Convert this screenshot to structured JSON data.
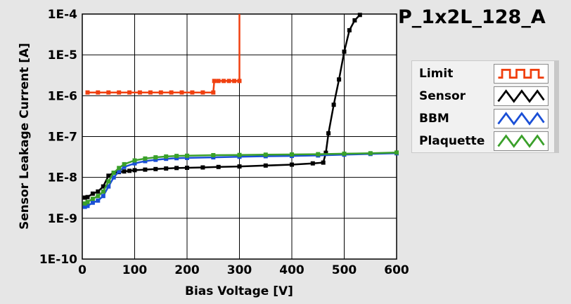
{
  "chart_data": {
    "type": "line",
    "title": "P_1x2L_128_A",
    "xlabel": "Bias Voltage [V]",
    "ylabel": "Sensor Leakage Current [A]",
    "xlim": [
      0,
      600
    ],
    "ylim": [
      1e-10,
      0.0001
    ],
    "y_scale": "log",
    "grid": true,
    "legend_position": "right",
    "x_ticks": [
      "0",
      "100",
      "200",
      "300",
      "400",
      "500",
      "600"
    ],
    "y_ticks": [
      "1E-10",
      "1E-9",
      "1E-8",
      "1E-7",
      "1E-6",
      "1E-5",
      "1E-4"
    ],
    "series": [
      {
        "name": "Limit",
        "color": "#f04010",
        "x": [
          10,
          30,
          50,
          70,
          90,
          110,
          130,
          150,
          170,
          190,
          210,
          230,
          250,
          252,
          260,
          270,
          280,
          290,
          300,
          300
        ],
        "y": [
          1.2e-06,
          1.2e-06,
          1.2e-06,
          1.2e-06,
          1.2e-06,
          1.2e-06,
          1.2e-06,
          1.2e-06,
          1.2e-06,
          1.2e-06,
          1.2e-06,
          1.2e-06,
          1.2e-06,
          2.3e-06,
          2.3e-06,
          2.3e-06,
          2.3e-06,
          2.3e-06,
          2.3e-06,
          0.0001
        ]
      },
      {
        "name": "Sensor",
        "color": "#000000",
        "x": [
          5,
          10,
          20,
          30,
          40,
          50,
          60,
          70,
          80,
          90,
          100,
          120,
          140,
          160,
          180,
          200,
          230,
          260,
          300,
          350,
          400,
          440,
          460,
          465,
          470,
          480,
          490,
          500,
          510,
          520,
          530
        ],
        "y": [
          3.2e-09,
          3.3e-09,
          4e-09,
          4.5e-09,
          6e-09,
          1.1e-08,
          1.3e-08,
          1.35e-08,
          1.4e-08,
          1.45e-08,
          1.5e-08,
          1.55e-08,
          1.6e-08,
          1.65e-08,
          1.7e-08,
          1.72e-08,
          1.75e-08,
          1.8e-08,
          1.85e-08,
          1.95e-08,
          2.05e-08,
          2.2e-08,
          2.3e-08,
          4e-08,
          1.2e-07,
          6e-07,
          2.5e-06,
          1.2e-05,
          4e-05,
          7e-05,
          9.5e-05
        ]
      },
      {
        "name": "BBM",
        "color": "#1a4fd6",
        "x": [
          5,
          10,
          20,
          30,
          40,
          50,
          60,
          70,
          80,
          100,
          120,
          140,
          160,
          180,
          200,
          250,
          300,
          350,
          400,
          450,
          500,
          550,
          600
        ],
        "y": [
          1.9e-09,
          2e-09,
          2.4e-09,
          2.7e-09,
          3.5e-09,
          6e-09,
          1e-08,
          1.4e-08,
          1.8e-08,
          2.2e-08,
          2.5e-08,
          2.7e-08,
          2.85e-08,
          2.95e-08,
          3e-08,
          3.1e-08,
          3.2e-08,
          3.3e-08,
          3.35e-08,
          3.45e-08,
          3.6e-08,
          3.75e-08,
          3.9e-08
        ]
      },
      {
        "name": "Plaquette",
        "color": "#3aa02a",
        "x": [
          5,
          10,
          20,
          30,
          40,
          50,
          60,
          70,
          80,
          100,
          120,
          140,
          160,
          180,
          200,
          250,
          300,
          350,
          400,
          450,
          500,
          550,
          600
        ],
        "y": [
          2.3e-09,
          2.5e-09,
          3e-09,
          3.5e-09,
          4.5e-09,
          8e-09,
          1.3e-08,
          1.7e-08,
          2.1e-08,
          2.6e-08,
          2.9e-08,
          3.1e-08,
          3.25e-08,
          3.35e-08,
          3.4e-08,
          3.5e-08,
          3.55e-08,
          3.6e-08,
          3.65e-08,
          3.7e-08,
          3.8e-08,
          3.9e-08,
          4.05e-08
        ]
      }
    ]
  }
}
